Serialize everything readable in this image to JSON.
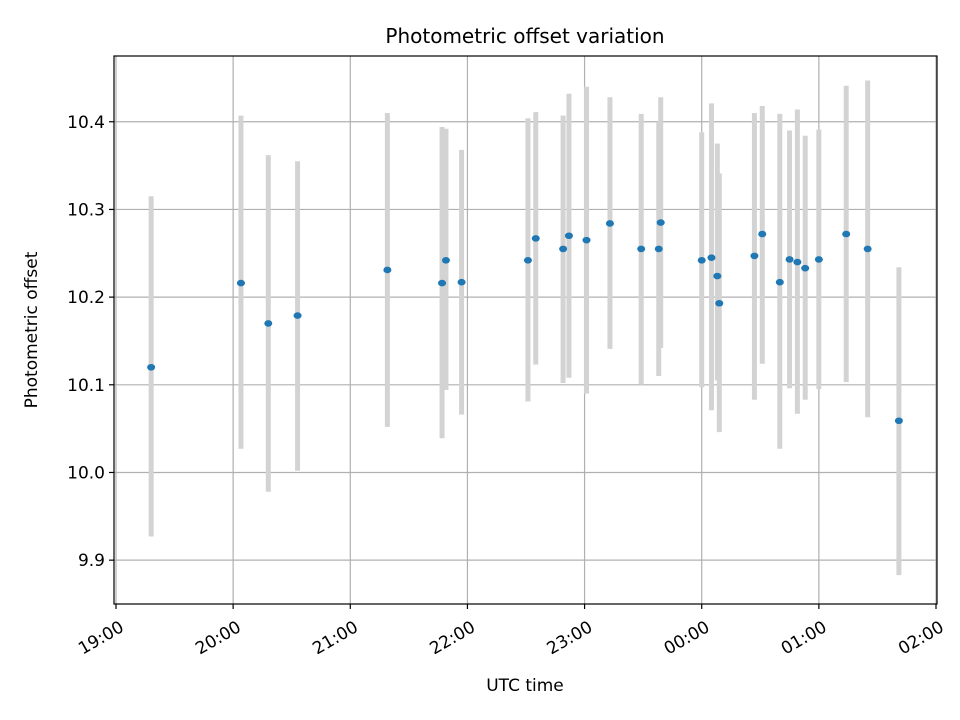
{
  "chart_data": {
    "type": "scatter",
    "title": "Photometric offset variation",
    "xlabel": "UTC time",
    "ylabel": "Photometric offset",
    "grid": true,
    "colors": {
      "point": "#1f77b4",
      "errorbar": "#d3d3d3",
      "grid": "#b0b0b0"
    },
    "xlim": [
      "19:00",
      "02:00 (+1 day)"
    ],
    "ylim": [
      9.85,
      10.475
    ],
    "x_ticks": [
      "19:00",
      "20:00",
      "21:00",
      "22:00",
      "23:00",
      "00:00",
      "01:00",
      "02:00"
    ],
    "y_ticks": [
      "9.9",
      "10.0",
      "10.1",
      "10.2",
      "10.3",
      "10.4"
    ],
    "points": [
      {
        "t": "19:18",
        "y": 10.12,
        "lo": 9.927,
        "hi": 10.315
      },
      {
        "t": "20:04",
        "y": 10.216,
        "lo": 10.027,
        "hi": 10.407
      },
      {
        "t": "20:18",
        "y": 10.17,
        "lo": 9.978,
        "hi": 10.362
      },
      {
        "t": "20:33",
        "y": 10.179,
        "lo": 10.002,
        "hi": 10.355
      },
      {
        "t": "21:19",
        "y": 10.231,
        "lo": 10.052,
        "hi": 10.41
      },
      {
        "t": "21:47",
        "y": 10.216,
        "lo": 10.039,
        "hi": 10.394
      },
      {
        "t": "21:49",
        "y": 10.242,
        "lo": 10.094,
        "hi": 10.392
      },
      {
        "t": "21:57",
        "y": 10.217,
        "lo": 10.066,
        "hi": 10.368
      },
      {
        "t": "22:31",
        "y": 10.242,
        "lo": 10.081,
        "hi": 10.404
      },
      {
        "t": "22:35",
        "y": 10.267,
        "lo": 10.123,
        "hi": 10.411
      },
      {
        "t": "22:49",
        "y": 10.255,
        "lo": 10.102,
        "hi": 10.407
      },
      {
        "t": "22:52",
        "y": 10.27,
        "lo": 10.108,
        "hi": 10.432
      },
      {
        "t": "23:01",
        "y": 10.265,
        "lo": 10.09,
        "hi": 10.44
      },
      {
        "t": "23:13",
        "y": 10.284,
        "lo": 10.141,
        "hi": 10.428
      },
      {
        "t": "23:29",
        "y": 10.255,
        "lo": 10.1,
        "hi": 10.409
      },
      {
        "t": "23:38",
        "y": 10.255,
        "lo": 10.11,
        "hi": 10.4
      },
      {
        "t": "23:39",
        "y": 10.285,
        "lo": 10.142,
        "hi": 10.428
      },
      {
        "t": "00:00",
        "y": 10.242,
        "lo": 10.097,
        "hi": 10.388
      },
      {
        "t": "00:05",
        "y": 10.245,
        "lo": 10.071,
        "hi": 10.421
      },
      {
        "t": "00:08",
        "y": 10.224,
        "lo": 10.105,
        "hi": 10.375
      },
      {
        "t": "00:09",
        "y": 10.193,
        "lo": 10.046,
        "hi": 10.341
      },
      {
        "t": "00:27",
        "y": 10.247,
        "lo": 10.083,
        "hi": 10.41
      },
      {
        "t": "00:31",
        "y": 10.272,
        "lo": 10.124,
        "hi": 10.418
      },
      {
        "t": "00:40",
        "y": 10.217,
        "lo": 10.027,
        "hi": 10.409
      },
      {
        "t": "00:45",
        "y": 10.243,
        "lo": 10.096,
        "hi": 10.39
      },
      {
        "t": "00:49",
        "y": 10.24,
        "lo": 10.067,
        "hi": 10.414
      },
      {
        "t": "00:53",
        "y": 10.233,
        "lo": 10.083,
        "hi": 10.384
      },
      {
        "t": "01:00",
        "y": 10.243,
        "lo": 10.095,
        "hi": 10.391
      },
      {
        "t": "01:14",
        "y": 10.272,
        "lo": 10.103,
        "hi": 10.441
      },
      {
        "t": "01:25",
        "y": 10.255,
        "lo": 10.063,
        "hi": 10.447
      },
      {
        "t": "01:41",
        "y": 10.059,
        "lo": 9.883,
        "hi": 10.234
      }
    ]
  }
}
